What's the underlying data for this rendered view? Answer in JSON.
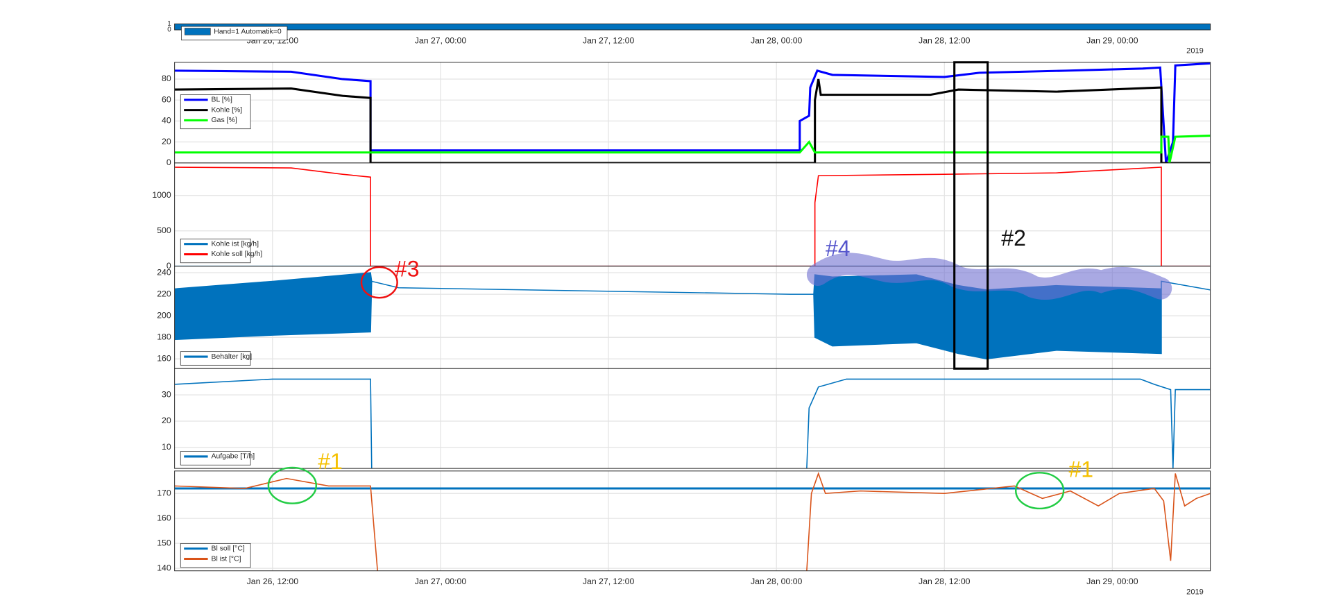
{
  "chart_data": [
    {
      "type": "area",
      "ylim": [
        0,
        1
      ],
      "yticks": [
        0,
        1
      ],
      "show_xtick_labels": true,
      "year_label": "2019",
      "legend": "upper left",
      "xlim": [
        "2019-01-26T05:00",
        "2019-01-29T07:00"
      ],
      "xticks": [
        {
          "value": "2019-01-26T12:00",
          "label": "Jan 26, 12:00"
        },
        {
          "value": "2019-01-27T00:00",
          "label": "Jan 27, 00:00"
        },
        {
          "value": "2019-01-27T12:00",
          "label": "Jan 27, 12:00"
        },
        {
          "value": "2019-01-28T00:00",
          "label": "Jan 28, 00:00"
        },
        {
          "value": "2019-01-28T12:00",
          "label": "Jan 28, 12:00"
        },
        {
          "value": "2019-01-29T00:00",
          "label": "Jan 29, 00:00"
        }
      ],
      "series": [
        {
          "name": "Hand=1 Automatik=0",
          "color": "#0072bd",
          "x": [
            "2019-01-26T05:00",
            "2019-01-29T07:00"
          ],
          "values": [
            1,
            1
          ]
        }
      ]
    },
    {
      "type": "line",
      "ylim": [
        0,
        96
      ],
      "yticks": [
        0,
        20,
        40,
        60,
        80
      ],
      "show_xtick_labels": false,
      "legend": "upper left",
      "xlim": [
        "2019-01-26T05:00",
        "2019-01-29T07:00"
      ],
      "xticks": [
        {
          "value": "2019-01-26T12:00",
          "label": "Jan 26, 12:00"
        },
        {
          "value": "2019-01-27T00:00",
          "label": "Jan 27, 00:00"
        },
        {
          "value": "2019-01-27T12:00",
          "label": "Jan 27, 12:00"
        },
        {
          "value": "2019-01-28T00:00",
          "label": "Jan 28, 00:00"
        },
        {
          "value": "2019-01-28T12:00",
          "label": "Jan 28, 12:00"
        },
        {
          "value": "2019-01-29T00:00",
          "label": "Jan 29, 00:00"
        }
      ],
      "series": [
        {
          "name": "BL [%]",
          "color": "#0000ff",
          "x": [
            "2019-01-26T05:00",
            "2019-01-26T13:20",
            "2019-01-26T17:00",
            "2019-01-26T19:00",
            "2019-01-26T19:00",
            "2019-01-28T01:40",
            "2019-01-28T01:40",
            "2019-01-28T02:20",
            "2019-01-28T02:25",
            "2019-01-28T02:55",
            "2019-01-28T04:00",
            "2019-01-28T12:00",
            "2019-01-28T14:30",
            "2019-01-28T20:40",
            "2019-01-29T02:10",
            "2019-01-29T03:25",
            "2019-01-29T03:50",
            "2019-01-29T04:20",
            "2019-01-29T04:30",
            "2019-01-29T07:00"
          ],
          "values": [
            88,
            87,
            80,
            78,
            12,
            12,
            40,
            45,
            72,
            88,
            84,
            82,
            86,
            88,
            90,
            91,
            0,
            20,
            93,
            95
          ]
        },
        {
          "name": "Kohle [%]",
          "color": "#000000",
          "x": [
            "2019-01-26T05:00",
            "2019-01-26T13:20",
            "2019-01-26T17:00",
            "2019-01-26T19:00",
            "2019-01-26T19:00",
            "2019-01-28T02:45",
            "2019-01-28T02:45",
            "2019-01-28T03:00",
            "2019-01-28T03:10",
            "2019-01-28T11:00",
            "2019-01-28T13:00",
            "2019-01-28T20:00",
            "2019-01-29T03:30",
            "2019-01-29T03:30",
            "2019-01-29T07:00"
          ],
          "values": [
            70,
            71,
            64,
            62,
            0,
            0,
            60,
            80,
            65,
            65,
            70,
            68,
            72,
            0,
            0
          ]
        },
        {
          "name": "Gas [%]",
          "color": "#00ff00",
          "x": [
            "2019-01-26T05:00",
            "2019-01-28T01:40",
            "2019-01-28T02:20",
            "2019-01-28T02:45",
            "2019-01-29T03:30",
            "2019-01-29T03:30",
            "2019-01-29T04:00",
            "2019-01-29T04:05",
            "2019-01-29T04:30",
            "2019-01-29T07:00"
          ],
          "values": [
            10,
            10,
            20,
            10,
            10,
            25,
            25,
            0,
            25,
            26
          ]
        }
      ]
    },
    {
      "type": "line",
      "ylim": [
        0,
        1460
      ],
      "yticks": [
        0,
        500,
        1000
      ],
      "show_xtick_labels": false,
      "legend": "lower left",
      "xlim": [
        "2019-01-26T05:00",
        "2019-01-29T07:00"
      ],
      "xticks": [
        {
          "value": "2019-01-26T12:00",
          "label": "Jan 26, 12:00"
        },
        {
          "value": "2019-01-27T00:00",
          "label": "Jan 27, 00:00"
        },
        {
          "value": "2019-01-27T12:00",
          "label": "Jan 27, 12:00"
        },
        {
          "value": "2019-01-28T00:00",
          "label": "Jan 28, 00:00"
        },
        {
          "value": "2019-01-28T12:00",
          "label": "Jan 28, 12:00"
        },
        {
          "value": "2019-01-29T00:00",
          "label": "Jan 29, 00:00"
        }
      ],
      "series": [
        {
          "name": "Kohle ist [kg/h]",
          "color": "#0072bd",
          "x": [
            "2019-01-26T05:00",
            "2019-01-29T07:00"
          ],
          "values": [
            0,
            0
          ]
        },
        {
          "name": "Kohle soll [kg/h]",
          "color": "#ff0000",
          "x": [
            "2019-01-26T05:00",
            "2019-01-26T13:20",
            "2019-01-26T17:00",
            "2019-01-26T19:00",
            "2019-01-26T19:00",
            "2019-01-28T02:45",
            "2019-01-28T02:45",
            "2019-01-28T03:00",
            "2019-01-28T12:00",
            "2019-01-28T20:00",
            "2019-01-29T03:30",
            "2019-01-29T03:30",
            "2019-01-29T07:00"
          ],
          "values": [
            1400,
            1390,
            1300,
            1260,
            0,
            0,
            900,
            1280,
            1300,
            1320,
            1400,
            0,
            0
          ]
        }
      ]
    },
    {
      "type": "line",
      "ylim": [
        151,
        246
      ],
      "yticks": [
        160,
        180,
        200,
        220,
        240
      ],
      "show_xtick_labels": false,
      "legend": "lower left",
      "xlim": [
        "2019-01-26T05:00",
        "2019-01-29T07:00"
      ],
      "xticks": [
        {
          "value": "2019-01-26T12:00",
          "label": "Jan 26, 12:00"
        },
        {
          "value": "2019-01-27T00:00",
          "label": "Jan 27, 00:00"
        },
        {
          "value": "2019-01-27T12:00",
          "label": "Jan 27, 12:00"
        },
        {
          "value": "2019-01-28T00:00",
          "label": "Jan 28, 00:00"
        },
        {
          "value": "2019-01-28T12:00",
          "label": "Jan 28, 12:00"
        },
        {
          "value": "2019-01-29T00:00",
          "label": "Jan 29, 00:00"
        }
      ],
      "series": [
        {
          "name": "Behälter [kg]",
          "color": "#0072bd",
          "x": [
            "2019-01-26T05:00",
            "2019-01-26T12:00",
            "2019-01-26T19:00",
            "2019-01-26T19:05",
            "2019-01-26T21:00",
            "2019-01-28T01:00",
            "2019-01-28T02:40",
            "2019-01-28T02:45",
            "2019-01-28T04:00",
            "2019-01-28T10:00",
            "2019-01-28T13:00",
            "2019-01-28T15:00",
            "2019-01-28T20:00",
            "2019-01-29T03:30",
            "2019-01-29T03:30",
            "2019-01-29T07:00"
          ],
          "values": [
            225,
            232,
            240,
            232,
            226,
            220,
            220,
            238,
            236,
            238,
            228,
            224,
            228,
            225,
            232,
            224
          ],
          "low": [
            178,
            182,
            185,
            232,
            226,
            220,
            220,
            180,
            172,
            175,
            165,
            160,
            168,
            165,
            232,
            224
          ]
        }
      ]
    },
    {
      "type": "line",
      "ylim": [
        2,
        40
      ],
      "yticks": [
        10,
        20,
        30
      ],
      "show_xtick_labels": false,
      "legend": "lower left",
      "xlim": [
        "2019-01-26T05:00",
        "2019-01-29T07:00"
      ],
      "xticks": [
        {
          "value": "2019-01-26T12:00",
          "label": "Jan 26, 12:00"
        },
        {
          "value": "2019-01-27T00:00",
          "label": "Jan 27, 00:00"
        },
        {
          "value": "2019-01-27T12:00",
          "label": "Jan 27, 12:00"
        },
        {
          "value": "2019-01-28T00:00",
          "label": "Jan 28, 00:00"
        },
        {
          "value": "2019-01-28T12:00",
          "label": "Jan 28, 12:00"
        },
        {
          "value": "2019-01-29T00:00",
          "label": "Jan 29, 00:00"
        }
      ],
      "series": [
        {
          "name": "Aufgabe [T/h]",
          "color": "#0072bd",
          "x": [
            "2019-01-26T05:00",
            "2019-01-26T12:00",
            "2019-01-26T19:00",
            "2019-01-26T19:05",
            "2019-01-28T00:00",
            "2019-01-28T02:10",
            "2019-01-28T02:20",
            "2019-01-28T03:00",
            "2019-01-28T05:00",
            "2019-01-29T02:00",
            "2019-01-29T03:00",
            "2019-01-29T04:10",
            "2019-01-29T04:20",
            "2019-01-29T04:30",
            "2019-01-29T07:00"
          ],
          "values": [
            34,
            36,
            36,
            2,
            null,
            2,
            25,
            33,
            36,
            36,
            34,
            32,
            2,
            32,
            32
          ]
        }
      ]
    },
    {
      "type": "line",
      "ylim": [
        139,
        179
      ],
      "yticks": [
        140,
        150,
        160,
        170
      ],
      "show_xtick_labels": true,
      "year_label": "2019",
      "legend": "lower left",
      "xlim": [
        "2019-01-26T05:00",
        "2019-01-29T07:00"
      ],
      "xticks": [
        {
          "value": "2019-01-26T12:00",
          "label": "Jan 26, 12:00"
        },
        {
          "value": "2019-01-27T00:00",
          "label": "Jan 27, 00:00"
        },
        {
          "value": "2019-01-27T12:00",
          "label": "Jan 27, 12:00"
        },
        {
          "value": "2019-01-28T00:00",
          "label": "Jan 28, 00:00"
        },
        {
          "value": "2019-01-28T12:00",
          "label": "Jan 28, 12:00"
        },
        {
          "value": "2019-01-29T00:00",
          "label": "Jan 29, 00:00"
        }
      ],
      "series": [
        {
          "name": "Bl soll [°C]",
          "color": "#0072bd",
          "x": [
            "2019-01-26T05:00",
            "2019-01-29T07:00"
          ],
          "values": [
            172,
            172
          ]
        },
        {
          "name": "Bl ist [°C]",
          "color": "#d95319",
          "x": [
            "2019-01-26T05:00",
            "2019-01-26T10:00",
            "2019-01-26T13:00",
            "2019-01-26T16:00",
            "2019-01-26T19:00",
            "2019-01-26T19:30",
            "2019-01-28T00:00",
            "2019-01-28T02:10",
            "2019-01-28T02:30",
            "2019-01-28T03:00",
            "2019-01-28T03:30",
            "2019-01-28T06:00",
            "2019-01-28T12:00",
            "2019-01-28T17:00",
            "2019-01-28T19:00",
            "2019-01-28T21:00",
            "2019-01-28T23:00",
            "2019-01-29T00:30",
            "2019-01-29T03:00",
            "2019-01-29T03:40",
            "2019-01-29T04:10",
            "2019-01-29T04:30",
            "2019-01-29T05:10",
            "2019-01-29T06:00",
            "2019-01-29T07:00"
          ],
          "values": [
            173,
            172,
            176,
            173,
            173,
            139,
            null,
            139,
            170,
            178,
            170,
            171,
            170,
            173,
            168,
            171,
            165,
            170,
            172,
            167,
            143,
            178,
            165,
            168,
            170
          ]
        }
      ]
    }
  ],
  "annotations": [
    {
      "text": "#1"
    },
    {
      "text": "#1"
    },
    {
      "text": "#2"
    },
    {
      "text": "#3"
    },
    {
      "text": "#4"
    }
  ]
}
